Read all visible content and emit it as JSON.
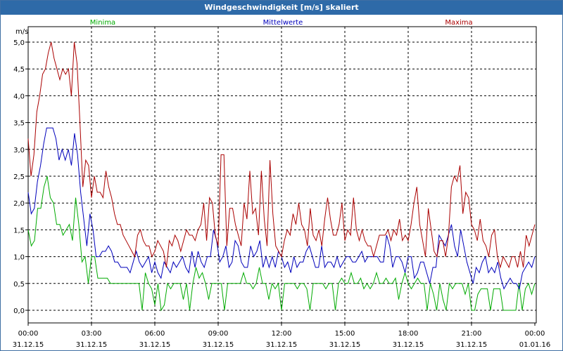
{
  "chart_data": {
    "type": "line",
    "title": "Windgeschwindigkeit [m/s] skaliert",
    "ylabel": "m/s",
    "xlabel": "",
    "ylim": [
      0,
      5.0
    ],
    "xlim_hours": [
      0,
      24
    ],
    "grid": true,
    "y_ticks": [
      "5,0",
      "4,5",
      "4,0",
      "3,5",
      "3,0",
      "2,5",
      "2,0",
      "1,5",
      "1,0",
      "0,5",
      "0,0"
    ],
    "y_tick_values": [
      5.0,
      4.5,
      4.0,
      3.5,
      3.0,
      2.5,
      2.0,
      1.5,
      1.0,
      0.5,
      0.0
    ],
    "x_ticks": [
      {
        "hour": 0,
        "time": "00:00",
        "date": "31.12.15"
      },
      {
        "hour": 3,
        "time": "03:00",
        "date": "31.12.15"
      },
      {
        "hour": 6,
        "time": "06:00",
        "date": "31.12.15"
      },
      {
        "hour": 9,
        "time": "09:00",
        "date": "31.12.15"
      },
      {
        "hour": 12,
        "time": "12:00",
        "date": "31.12.15"
      },
      {
        "hour": 15,
        "time": "15:00",
        "date": "31.12.15"
      },
      {
        "hour": 18,
        "time": "18:00",
        "date": "31.12.15"
      },
      {
        "hour": 21,
        "time": "21:00",
        "date": "31.12.15"
      },
      {
        "hour": 24,
        "time": "00:00",
        "date": "01.01.16"
      }
    ],
    "sample_interval_hours": 0.1667,
    "series": [
      {
        "name": "Minima",
        "color": "#00aa00",
        "values": [
          1.5,
          1.2,
          1.3,
          1.9,
          1.9,
          2.3,
          2.5,
          2.1,
          2.0,
          1.6,
          1.6,
          1.4,
          1.5,
          1.6,
          1.3,
          2.1,
          1.6,
          0.9,
          1.0,
          0.5,
          1.0,
          1.0,
          0.6,
          0.6,
          0.6,
          0.6,
          0.5,
          0.5,
          0.5,
          0.5,
          0.5,
          0.5,
          0.5,
          0.5,
          0.5,
          0.5,
          0.0,
          0.7,
          0.5,
          0.4,
          0.1,
          0.5,
          0.0,
          0.1,
          0.5,
          0.4,
          0.5,
          0.5,
          0.5,
          0.2,
          0.5,
          0.0,
          0.5,
          0.8,
          0.6,
          0.7,
          0.5,
          0.2,
          0.5,
          0.5,
          0.5,
          0.5,
          0.0,
          0.5,
          0.5,
          0.5,
          0.5,
          0.5,
          0.7,
          0.5,
          0.5,
          0.4,
          0.5,
          0.8,
          0.5,
          0.5,
          0.2,
          0.5,
          0.4,
          0.5,
          0.0,
          0.5,
          0.5,
          0.5,
          0.5,
          0.4,
          0.5,
          0.5,
          0.4,
          0.0,
          0.5,
          0.5,
          0.5,
          0.5,
          0.4,
          0.5,
          0.5,
          0.0,
          0.5,
          0.6,
          0.5,
          0.5,
          0.7,
          0.5,
          0.5,
          0.6,
          0.4,
          0.5,
          0.4,
          0.5,
          0.7,
          0.5,
          0.5,
          0.6,
          0.5,
          0.5,
          0.6,
          0.2,
          0.5,
          0.7,
          0.5,
          0.4,
          0.5,
          0.6,
          0.5,
          0.5,
          0.0,
          0.5,
          0.3,
          0.0,
          0.5,
          0.2,
          0.0,
          0.5,
          0.4,
          0.5,
          0.5,
          0.5,
          0.3,
          0.5,
          0.0,
          0.0,
          0.3,
          0.4,
          0.4,
          0.4,
          0.0,
          0.4,
          0.4,
          0.4,
          0.0,
          0.0,
          0.0,
          0.0,
          0.0,
          0.5,
          0.0,
          0.4,
          0.5,
          0.3,
          0.5
        ]
      },
      {
        "name": "Mittelwerte",
        "color": "#0000bb",
        "values": [
          2.2,
          1.8,
          1.9,
          2.4,
          2.7,
          3.1,
          3.4,
          3.4,
          3.4,
          3.2,
          2.8,
          3.0,
          2.8,
          3.0,
          2.7,
          3.3,
          2.9,
          2.2,
          1.7,
          1.2,
          1.8,
          1.5,
          1.0,
          1.0,
          1.1,
          1.1,
          1.2,
          1.1,
          0.9,
          0.9,
          0.8,
          0.8,
          0.8,
          0.7,
          0.9,
          1.1,
          0.9,
          0.8,
          0.9,
          1.0,
          0.7,
          0.9,
          0.7,
          0.6,
          0.9,
          0.8,
          0.7,
          0.9,
          0.8,
          0.9,
          1.0,
          0.8,
          0.7,
          1.1,
          0.8,
          1.1,
          0.9,
          0.8,
          1.0,
          1.0,
          1.5,
          1.3,
          0.9,
          1.0,
          1.2,
          0.8,
          0.9,
          1.3,
          1.2,
          0.9,
          0.8,
          0.8,
          1.2,
          1.0,
          1.1,
          1.3,
          0.8,
          1.0,
          0.8,
          1.0,
          0.8,
          1.1,
          1.0,
          0.8,
          0.9,
          0.7,
          1.0,
          0.8,
          0.9,
          0.9,
          1.1,
          1.2,
          1.0,
          0.8,
          0.8,
          1.2,
          0.8,
          0.9,
          0.9,
          0.8,
          1.0,
          0.8,
          0.9,
          1.0,
          1.0,
          0.9,
          0.9,
          1.0,
          1.1,
          0.9,
          1.0,
          1.0,
          1.0,
          1.0,
          0.9,
          0.9,
          1.4,
          1.2,
          0.8,
          1.0,
          1.0,
          0.9,
          0.7,
          1.0,
          1.0,
          0.6,
          0.7,
          0.9,
          0.9,
          0.7,
          0.5,
          0.8,
          0.8,
          1.4,
          1.3,
          1.2,
          1.4,
          1.6,
          1.2,
          1.0,
          1.5,
          1.2,
          0.9,
          0.7,
          0.5,
          0.8,
          0.7,
          0.9,
          1.0,
          0.7,
          0.8,
          0.7,
          0.9,
          0.6,
          0.4,
          0.5,
          0.6,
          0.5,
          0.5,
          0.4,
          0.7,
          0.8,
          0.9,
          0.8,
          1.0
        ]
      },
      {
        "name": "Maxima",
        "color": "#aa0000",
        "values": [
          3.2,
          2.5,
          2.9,
          3.7,
          4.0,
          4.4,
          4.5,
          4.8,
          5.0,
          4.7,
          4.5,
          4.3,
          4.5,
          4.4,
          4.5,
          4.0,
          5.0,
          4.6,
          3.5,
          2.3,
          2.8,
          2.7,
          2.1,
          2.5,
          2.2,
          2.2,
          2.1,
          2.6,
          2.3,
          2.1,
          1.8,
          1.6,
          1.6,
          1.4,
          1.3,
          1.2,
          1.1,
          1.0,
          1.4,
          1.5,
          1.3,
          1.2,
          1.2,
          1.0,
          1.1,
          1.3,
          1.2,
          1.1,
          0.8,
          1.3,
          1.2,
          1.4,
          1.3,
          1.1,
          1.3,
          1.5,
          1.4,
          1.4,
          1.3,
          1.5,
          1.6,
          2.0,
          1.3,
          2.1,
          2.0,
          1.4,
          1.2,
          2.9,
          2.9,
          1.2,
          1.9,
          1.9,
          1.6,
          1.4,
          1.2,
          2.0,
          1.7,
          2.6,
          1.8,
          1.9,
          1.4,
          2.6,
          1.7,
          1.2,
          2.8,
          1.8,
          1.2,
          1.1,
          1.0,
          1.3,
          1.5,
          1.4,
          1.8,
          1.6,
          2.0,
          1.6,
          1.5,
          1.2,
          1.9,
          1.4,
          1.3,
          1.5,
          1.2,
          1.7,
          2.1,
          1.7,
          1.4,
          1.4,
          1.6,
          2.0,
          1.3,
          1.5,
          1.4,
          2.1,
          1.5,
          1.3,
          1.5,
          1.3,
          1.2,
          1.2,
          1.0,
          1.2,
          1.4,
          1.4,
          1.4,
          1.5,
          1.3,
          1.5,
          1.4,
          1.7,
          1.3,
          1.4,
          1.3,
          1.6,
          2.0,
          2.3,
          1.6,
          1.3,
          1.0,
          1.9,
          1.5,
          1.1,
          1.0,
          1.3,
          1.3,
          1.0,
          1.4,
          2.3,
          2.5,
          2.4,
          2.7,
          1.8,
          2.2,
          2.1,
          1.6,
          1.5,
          1.3,
          1.7,
          1.3,
          1.2,
          1.0,
          1.4,
          1.5,
          1.0,
          0.8,
          1.0,
          0.9,
          0.8,
          1.0,
          1.0,
          0.8,
          1.1,
          0.8,
          1.4,
          1.2,
          1.4,
          1.6
        ]
      }
    ]
  }
}
